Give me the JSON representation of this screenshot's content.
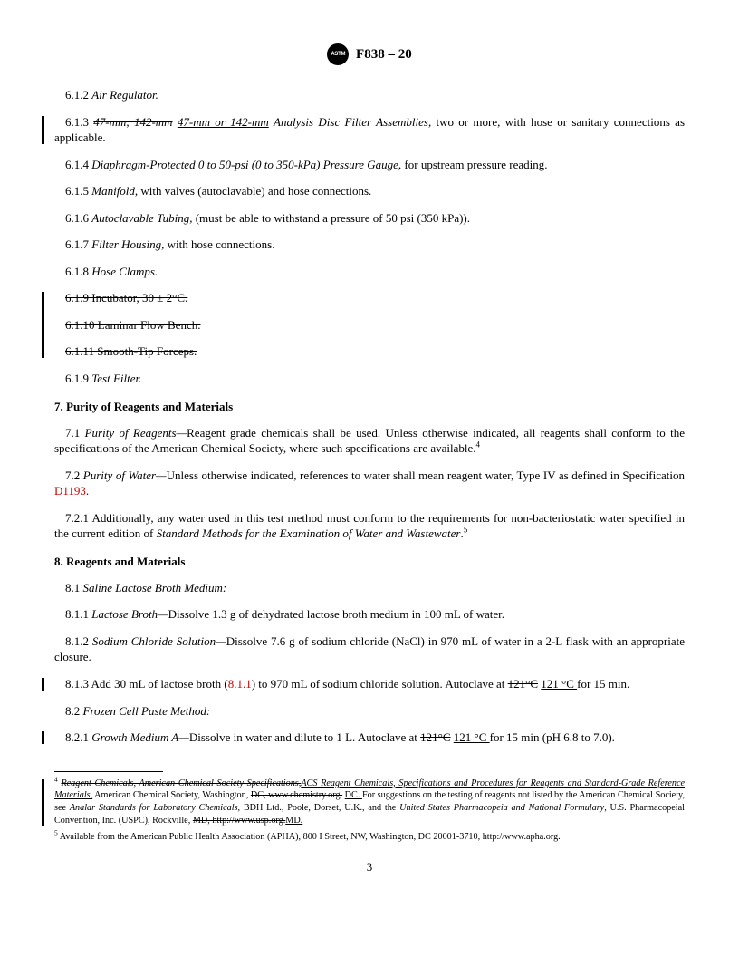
{
  "header": {
    "doc_id": "F838 – 20"
  },
  "items": {
    "i612": {
      "num": "6.1.2",
      "title": "Air Regulator."
    },
    "i613": {
      "num": "6.1.3",
      "strike1": "47-mm, 142-mm",
      "underline1": "47-mm or 142-mm",
      "title_rest": "Analysis Disc Filter Assemblies,",
      "tail": " two or more, with hose or sanitary connections as applicable."
    },
    "i614": {
      "num": "6.1.4",
      "title": "Diaphragm-Protected 0 to 50-psi (0 to 350-kPa) Pressure Gauge,",
      "tail": " for upstream pressure reading."
    },
    "i615": {
      "num": "6.1.5",
      "title": "Manifold,",
      "tail": " with valves (autoclavable) and hose connections."
    },
    "i616": {
      "num": "6.1.6",
      "title": "Autoclavable Tubing,",
      "tail": " (must be able to withstand a pressure of 50 psi (350 kPa))."
    },
    "i617": {
      "num": "6.1.7",
      "title": "Filter Housing,",
      "tail": " with hose connections."
    },
    "i618": {
      "num": "6.1.8",
      "title": "Hose Clamps."
    },
    "i619s": {
      "text": "6.1.9 Incubator, 30 ± 2°C."
    },
    "i6110s": {
      "text": "6.1.10 Laminar Flow Bench."
    },
    "i6111s": {
      "text": "6.1.11 Smooth-Tip Forceps."
    },
    "i619": {
      "num": "6.1.9",
      "title": "Test Filter."
    }
  },
  "sec7": {
    "heading": "7. Purity of Reagents and Materials",
    "p71a": "7.1 ",
    "p71title": "Purity of Reagents—",
    "p71body": "Reagent grade chemicals shall be used. Unless otherwise indicated, all reagents shall conform to the specifications of the American Chemical Society, where such specifications are available.",
    "p71sup": "4",
    "p72a": "7.2 ",
    "p72title": "Purity of Water—",
    "p72body": "Unless otherwise indicated, references to water shall mean reagent water, Type IV as defined in Specification ",
    "p72link": "D1193",
    "p72end": ".",
    "p721": "7.2.1 Additionally, any water used in this test method must conform to the requirements for non-bacteriostatic water specified in the current edition of ",
    "p721italic": "Standard Methods for the Examination of Water and Wastewater",
    "p721end": ".",
    "p721sup": "5"
  },
  "sec8": {
    "heading": "8. Reagents and Materials",
    "p81": "8.1 ",
    "p81title": "Saline Lactose Broth Medium:",
    "p811a": "8.1.1 ",
    "p811title": "Lactose Broth—",
    "p811body": "Dissolve 1.3 g of dehydrated lactose broth medium in 100 mL of water.",
    "p812a": "8.1.2 ",
    "p812title": "Sodium Chloride Solution—",
    "p812body": "Dissolve 7.6 g of sodium chloride (NaCl) in 970 mL of water in a 2-L flask with an appropriate closure.",
    "p813a": "8.1.3 Add 30 mL of lactose broth (",
    "p813link": "8.1.1",
    "p813b": ") to 970 mL of sodium chloride solution. Autoclave at ",
    "p813strike": "121°C",
    "p813under": "121 °C ",
    "p813c": "for 15 min.",
    "p82": "8.2 ",
    "p82title": "Frozen Cell Paste Method:",
    "p821a": "8.2.1 ",
    "p821title": "Growth Medium A—",
    "p821body": "Dissolve in water and dilute to 1 L. Autoclave at ",
    "p821strike": "121°C",
    "p821under": "121 °C ",
    "p821c": "for 15 min (pH 6.8 to 7.0)."
  },
  "footnotes": {
    "f4sup": "4",
    "f4strike": "Reagent Chemicals, American Chemical Society Specifications,",
    "f4under1": "ACS Reagent Chemicals, Specifications and Procedures for Reagents and Standard-Grade Reference Materials,",
    "f4a": " American Chemical Society, Washington, ",
    "f4strike2": "DC, www.chemistry.org.",
    "f4under2": "DC. ",
    "f4b": "For suggestions on the testing of reagents not listed by the American Chemical Society, see ",
    "f4italic": "Analar Standards for Laboratory Chemicals,",
    "f4c": " BDH Ltd., Poole, Dorset, U.K., and the ",
    "f4italic2": "United States Pharmacopeia and National Formulary",
    "f4d": ", U.S. Pharmacopeial Convention, Inc. (USPC), Rockville, ",
    "f4strike3": "MD, http://www.usp.org.",
    "f4under3": "MD.",
    "f5sup": "5",
    "f5": " Available from the American Public Health Association (APHA), 800 I Street, NW, Washington, DC 20001-3710, http://www.apha.org."
  },
  "page_number": "3"
}
